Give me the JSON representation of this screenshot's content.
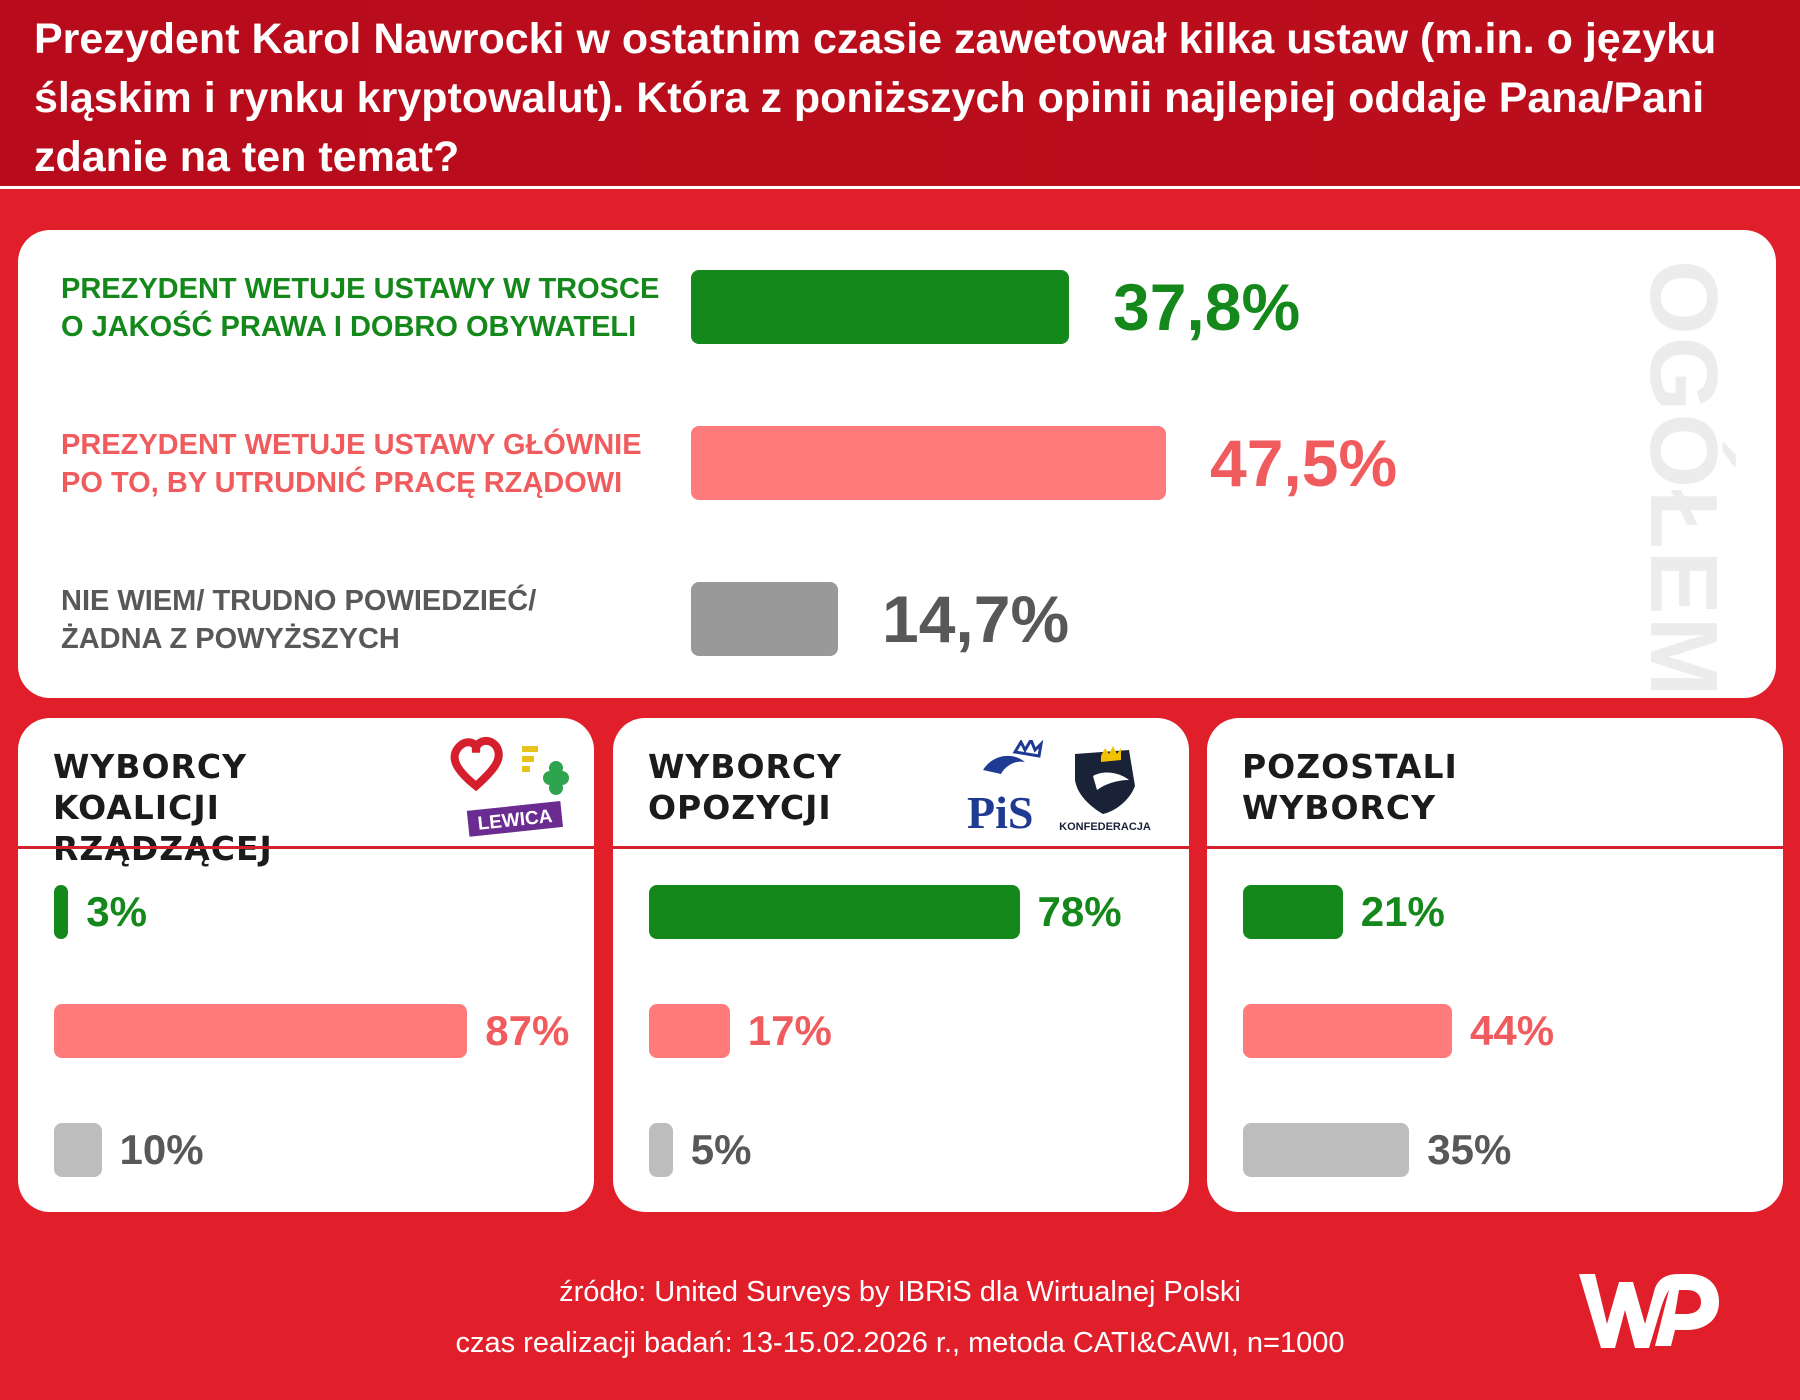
{
  "header": {
    "question": "Prezydent Karol Nawrocki w ostatnim czasie zawetował kilka ustaw (m.in. o języku śląskim i rynku kryptowalut). Która z poniższych opinii najlepiej oddaje Pana/Pani zdanie na ten temat?"
  },
  "overall": {
    "side_label": "OGÓŁEM",
    "answers": [
      {
        "label_line1": "PREZYDENT WETUJE USTAWY W TROSCE",
        "label_line2": "O JAKOŚĆ PRAWA I DOBRO OBYWATELI",
        "value_text": "37,8%"
      },
      {
        "label_line1": "PREZYDENT WETUJE USTAWY GŁÓWNIE",
        "label_line2": "PO TO, BY UTRUDNIĆ PRACĘ RZĄDOWI",
        "value_text": "47,5%"
      },
      {
        "label_line1": "NIE WIEM/ TRUDNO POWIEDZIEĆ/",
        "label_line2": "ŻADNA Z POWYŻSZYCH",
        "value_text": "14,7%"
      }
    ]
  },
  "segments": [
    {
      "title_line1": "WYBORCY",
      "title_line2": "KOALICJI RZĄDZĄCEJ",
      "logo_text": "LEWICA",
      "values_text": [
        "3%",
        "87%",
        "10%"
      ]
    },
    {
      "title_line1": "WYBORCY",
      "title_line2": "OPOZYCJI",
      "logo_text": "PiS",
      "logo_text2": "KONFEDERACJA",
      "values_text": [
        "78%",
        "17%",
        "5%"
      ]
    },
    {
      "title_line1": "POZOSTALI",
      "title_line2": "WYBORCY",
      "values_text": [
        "21%",
        "44%",
        "35%"
      ]
    }
  ],
  "footer": {
    "source": "źródło: United Surveys by IBRiS dla Wirtualnej Polski",
    "method": "czas realizacji badań: 13-15.02.2026 r., metoda CATI&CAWI, n=1000"
  },
  "colors": {
    "green": "#14881a",
    "pink": "#ff7b7b",
    "grey": "#999999",
    "grey_light": "#bdbdbd",
    "red": "#e01f2b"
  },
  "chart_data": [
    {
      "type": "bar",
      "title": "OGÓŁEM",
      "categories": [
        "PREZYDENT WETUJE USTAWY W TROSCE O JAKOŚĆ PRAWA I DOBRO OBYWATELI",
        "PREZYDENT WETUJE USTAWY GŁÓWNIE PO TO, BY UTRUDNIĆ PRACĘ RZĄDOWI",
        "NIE WIEM/ TRUDNO POWIEDZIEĆ/ ŻADNA Z POWYŻSZYCH"
      ],
      "values": [
        37.8,
        47.5,
        14.7
      ],
      "orientation": "horizontal",
      "grid": false
    },
    {
      "type": "bar",
      "title": "WYBORCY KOALICJI RZĄDZĄCEJ",
      "categories": [
        "PREZYDENT WETUJE USTAWY W TROSCE O JAKOŚĆ PRAWA I DOBRO OBYWATELI",
        "PREZYDENT WETUJE USTAWY GŁÓWNIE PO TO, BY UTRUDNIĆ PRACĘ RZĄDOWI",
        "NIE WIEM/ TRUDNO POWIEDZIEĆ/ ŻADNA Z POWYŻSZYCH"
      ],
      "values": [
        3,
        87,
        10
      ],
      "orientation": "horizontal",
      "grid": false
    },
    {
      "type": "bar",
      "title": "WYBORCY OPOZYCJI",
      "categories": [
        "PREZYDENT WETUJE USTAWY W TROSCE O JAKOŚĆ PRAWA I DOBRO OBYWATELI",
        "PREZYDENT WETUJE USTAWY GŁÓWNIE PO TO, BY UTRUDNIĆ PRACĘ RZĄDOWI",
        "NIE WIEM/ TRUDNO POWIEDZIEĆ/ ŻADNA Z POWYŻSZYCH"
      ],
      "values": [
        78,
        17,
        5
      ],
      "orientation": "horizontal",
      "grid": false
    },
    {
      "type": "bar",
      "title": "POZOSTALI WYBORCY",
      "categories": [
        "PREZYDENT WETUJE USTAWY W TROSCE O JAKOŚĆ PRAWA I DOBRO OBYWATELI",
        "PREZYDENT WETUJE USTAWY GŁÓWNIE PO TO, BY UTRUDNIĆ PRACĘ RZĄDOWI",
        "NIE WIEM/ TRUDNO POWIEDZIEĆ/ ŻADNA Z POWYŻSZYCH"
      ],
      "values": [
        21,
        44,
        35
      ],
      "orientation": "horizontal",
      "grid": false
    }
  ]
}
